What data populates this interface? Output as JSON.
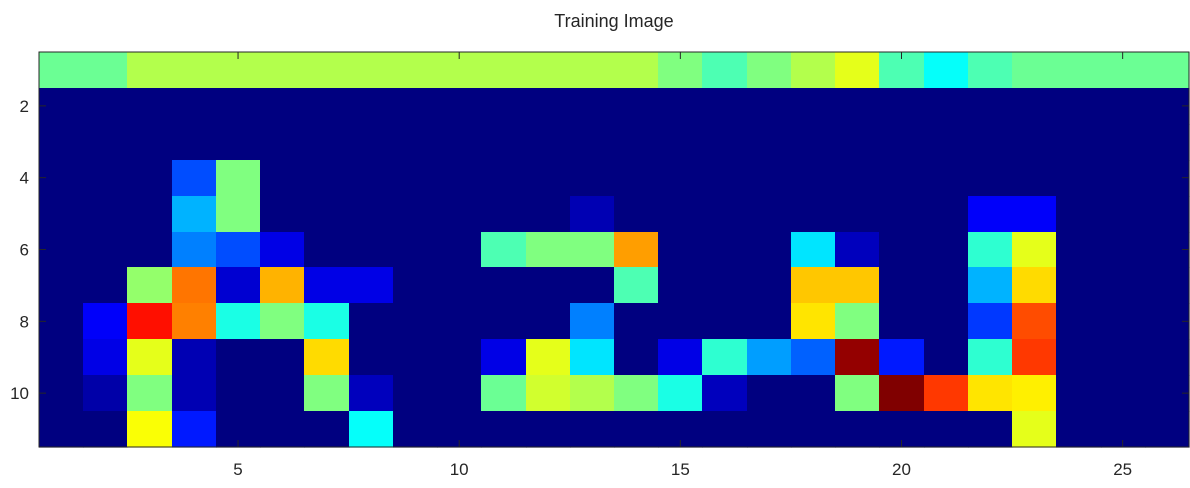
{
  "chart_data": {
    "type": "heatmap",
    "title": "Training Image",
    "xlabel": "",
    "ylabel": "",
    "colormap": "jet",
    "color_range": [
      0,
      1
    ],
    "xlim": [
      0.5,
      26.5
    ],
    "ylim": [
      0.5,
      11.5
    ],
    "y_direction": "reverse",
    "x_ticks": [
      5,
      10,
      15,
      20,
      25
    ],
    "y_ticks": [
      2,
      4,
      6,
      8,
      10
    ],
    "grid": false,
    "values": [
      [
        0.48,
        0.48,
        0.55,
        0.55,
        0.55,
        0.55,
        0.55,
        0.55,
        0.55,
        0.55,
        0.55,
        0.55,
        0.55,
        0.55,
        0.5,
        0.45,
        0.5,
        0.55,
        0.6,
        0.45,
        0.38,
        0.45,
        0.48,
        0.48,
        0.48,
        0.48
      ],
      [
        0,
        0,
        0,
        0,
        0,
        0,
        0,
        0,
        0,
        0,
        0,
        0,
        0,
        0,
        0,
        0,
        0,
        0,
        0,
        0,
        0,
        0,
        0,
        0,
        0,
        0
      ],
      [
        0,
        0,
        0,
        0,
        0,
        0,
        0,
        0,
        0,
        0,
        0,
        0,
        0,
        0,
        0,
        0,
        0,
        0,
        0,
        0,
        0,
        0,
        0,
        0,
        0,
        0
      ],
      [
        0,
        0,
        0,
        0.2,
        0.5,
        0,
        0,
        0,
        0,
        0,
        0,
        0,
        0,
        0,
        0,
        0,
        0,
        0,
        0,
        0,
        0,
        0,
        0,
        0,
        0,
        0
      ],
      [
        0,
        0,
        0,
        0.3,
        0.5,
        0,
        0,
        0,
        0,
        0,
        0,
        0,
        0.05,
        0,
        0,
        0,
        0,
        0,
        0,
        0,
        0,
        0.12,
        0.12,
        0,
        0,
        0
      ],
      [
        0,
        0,
        0,
        0.25,
        0.2,
        0.1,
        0,
        0,
        0,
        0,
        0.45,
        0.5,
        0.5,
        0.72,
        0,
        0,
        0,
        0.35,
        0.06,
        0,
        0,
        0.42,
        0.6,
        0,
        0,
        0
      ],
      [
        0,
        0,
        0.52,
        0.76,
        0.08,
        0.7,
        0.1,
        0.1,
        0,
        0,
        0,
        0,
        0,
        0.45,
        0,
        0,
        0,
        0.68,
        0.68,
        0,
        0,
        0.3,
        0.66,
        0,
        0,
        0
      ],
      [
        0,
        0.12,
        0.86,
        0.75,
        0.4,
        0.5,
        0.4,
        0,
        0,
        0,
        0,
        0,
        0.25,
        0,
        0,
        0,
        0,
        0.65,
        0.5,
        0,
        0,
        0.18,
        0.8,
        0,
        0,
        0
      ],
      [
        0,
        0.1,
        0.6,
        0.05,
        0,
        0,
        0.66,
        0,
        0,
        0,
        0.1,
        0.6,
        0.35,
        0,
        0.1,
        0.42,
        0.28,
        0.22,
        0.98,
        0.15,
        0,
        0.42,
        0.82,
        0,
        0,
        0
      ],
      [
        0,
        0.04,
        0.5,
        0.05,
        0,
        0,
        0.5,
        0.06,
        0,
        0,
        0.48,
        0.58,
        0.55,
        0.5,
        0.4,
        0.06,
        0,
        0,
        0.5,
        1,
        0.82,
        0.65,
        0.64,
        0,
        0,
        0
      ],
      [
        0,
        0,
        0.62,
        0.15,
        0,
        0,
        0,
        0.38,
        0,
        0,
        0,
        0,
        0,
        0,
        0,
        0,
        0,
        0,
        0,
        0,
        0,
        0,
        0.6,
        0,
        0,
        0
      ]
    ]
  }
}
